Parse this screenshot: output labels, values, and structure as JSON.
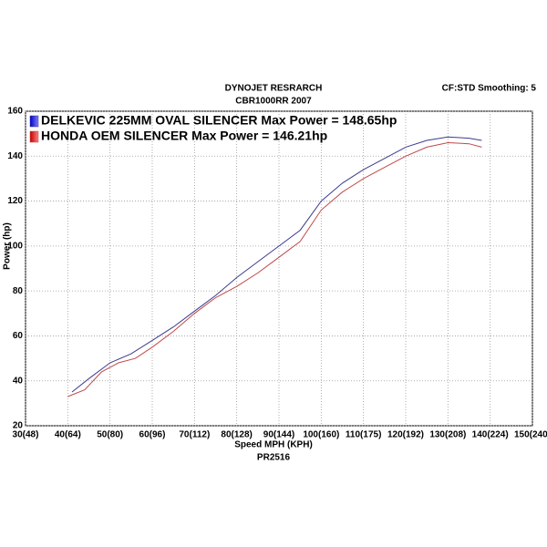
{
  "chart_data": {
    "type": "line",
    "title": "DYNOJET RESRARCH",
    "subtitle": "CBR1000RR 2007",
    "annotation": "CF:STD Smoothing: 5",
    "x_label": "Speed MPH (KPH)",
    "x_sublabel": "PR2516",
    "y_label": "Power (hp)",
    "xlim": [
      30,
      150
    ],
    "xticks": [
      {
        "value": 30,
        "label": "30(48)"
      },
      {
        "value": 40,
        "label": "40(64)"
      },
      {
        "value": 50,
        "label": "50(80)"
      },
      {
        "value": 60,
        "label": "60(96)"
      },
      {
        "value": 70,
        "label": "70(112)"
      },
      {
        "value": 80,
        "label": "80(128)"
      },
      {
        "value": 90,
        "label": "90(144)"
      },
      {
        "value": 100,
        "label": "100(160)"
      },
      {
        "value": 110,
        "label": "110(175)"
      },
      {
        "value": 120,
        "label": "120(192)"
      },
      {
        "value": 130,
        "label": "130(208)"
      },
      {
        "value": 140,
        "label": "140(224)"
      },
      {
        "value": 150,
        "label": "150(240)"
      }
    ],
    "ylim": [
      20,
      160
    ],
    "yticks": [
      20,
      40,
      60,
      80,
      100,
      120,
      140,
      160
    ],
    "grid": true,
    "series": [
      {
        "name": "DELKEVIC 225MM OVAL SILENCER Max Power = 148.65hp",
        "color": "#3b3b8f",
        "x": [
          41,
          45,
          50,
          55,
          60,
          65,
          70,
          75,
          80,
          85,
          90,
          95,
          100,
          105,
          110,
          115,
          120,
          125,
          130,
          135,
          138
        ],
        "values": [
          35,
          41,
          48,
          52,
          58,
          64,
          71,
          78,
          86,
          93,
          100,
          107,
          120,
          128,
          134,
          139,
          144,
          147,
          148.5,
          148,
          147
        ]
      },
      {
        "name": "HONDA OEM SILENCER Max Power = 146.21hp",
        "color": "#c04848",
        "x": [
          40,
          44,
          48,
          52,
          56,
          60,
          65,
          70,
          75,
          80,
          85,
          90,
          95,
          100,
          105,
          110,
          115,
          120,
          125,
          130,
          135,
          138
        ],
        "values": [
          33,
          36,
          44,
          48,
          50,
          55,
          62,
          70,
          77,
          82,
          88,
          95,
          102,
          116,
          124,
          130,
          135,
          140,
          144,
          146,
          145.5,
          144
        ]
      }
    ]
  }
}
